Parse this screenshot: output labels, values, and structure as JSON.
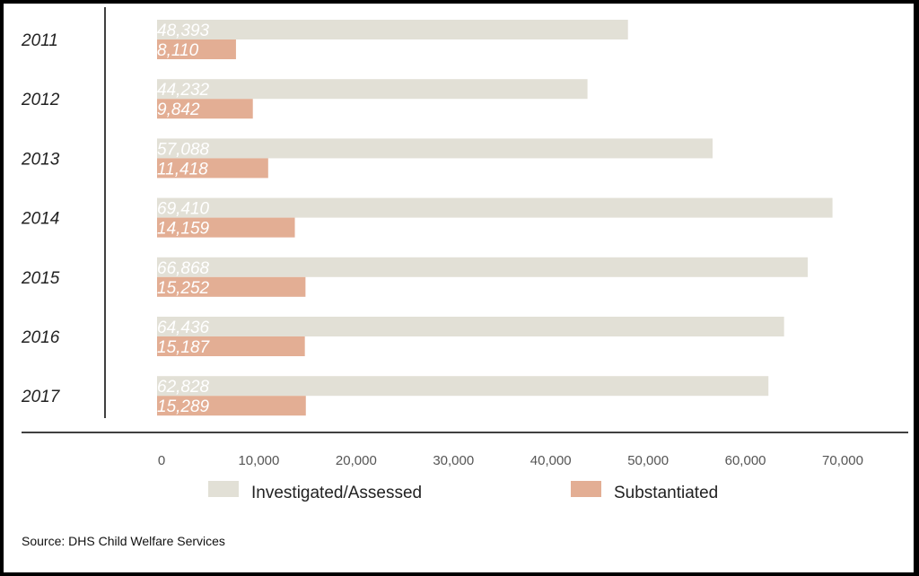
{
  "chart_data": {
    "type": "bar",
    "orientation": "horizontal",
    "categories": [
      "2011",
      "2012",
      "2013",
      "2014",
      "2015",
      "2016",
      "2017"
    ],
    "series": [
      {
        "name": "Investigated/Assessed",
        "color": "#e2e0d6",
        "values": [
          48393,
          44232,
          57088,
          69410,
          66868,
          64436,
          62828
        ],
        "labels": [
          "48,393",
          "44,232",
          "57,088",
          "69,410",
          "66,868",
          "64,436",
          "62,828"
        ]
      },
      {
        "name": "Substantiated",
        "color": "#e3ae94",
        "values": [
          8110,
          9842,
          11418,
          14159,
          15252,
          15187,
          15289
        ],
        "labels": [
          "8,110",
          "9,842",
          "11,418",
          "14,159",
          "15,252",
          "15,187",
          "15,289"
        ]
      }
    ],
    "xticks": [
      "0",
      "10,000",
      "20,000",
      "30,000",
      "40,000",
      "50,000",
      "60,000",
      "70,000"
    ],
    "xlim": [
      0,
      70000
    ],
    "legend_position": "bottom",
    "grid": false
  },
  "source": "Source: DHS Child Welfare Services"
}
